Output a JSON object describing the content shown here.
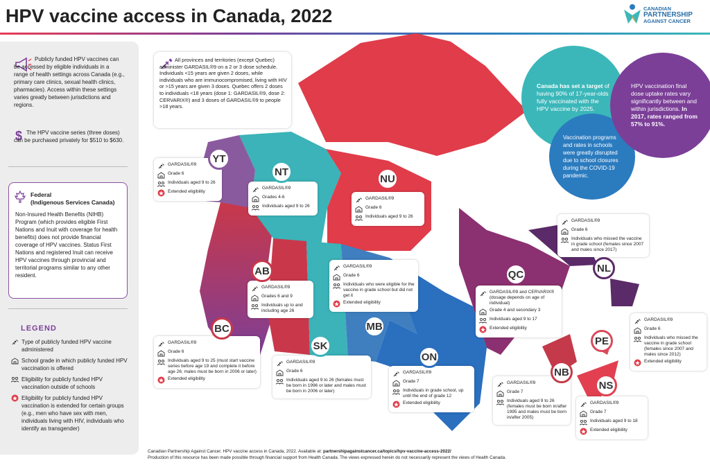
{
  "header": {
    "title": "HPV vaccine access in Canada, 2022",
    "logo": [
      "CANADIAN",
      "PARTNERSHIP",
      "AGAINST CANCER"
    ]
  },
  "sidebar": {
    "access_text": "Publicly funded HPV vaccines can be accessed by eligible individuals in a range of health settings across Canada (e.g., primary care clinics, sexual health clinics, pharmacies). Access within these settings varies greatly between jurisdictions and regions.",
    "cost_text": "The HPV vaccine series (three doses) can be purchased privately for $510 to $630.",
    "federal": {
      "title": "Federal",
      "subtitle": "(Indigenous Services Canada)",
      "body": "Non-Insured Health Benefits (NIHB) Program (which provides eligible First Nations and Inuit with coverage for health benefits) does not provide financial coverage of HPV vaccines. Status First Nations and registered Inuit can receive HPV vaccines through provincial and territorial programs similar to any other resident."
    },
    "legend": {
      "title": "LEGEND",
      "items": [
        "Type of publicly funded HPV vaccine administered",
        "School grade in which publicly funded HPV vaccination is offered",
        "Eligibility for publicly funded HPV vaccination outside of schools",
        "Eligibility for publicly funded HPV vaccination is extended for certain groups (e.g., men who have sex with men, individuals living with HIV, individuals who identify as transgender)"
      ]
    }
  },
  "note": "All provinces and territories (except Quebec) administer GARDASIL®9 on a 2 or 3 dose schedule. Individuals <15 years are given 2 doses, while individuals who are immunocompromised, living with HIV or >15 years are given 3 doses. Quebec offers 2 doses to individuals <18 years (dose 1: GARDASIL®9, dose 2: CERVARIX®) and 3 doses of GARDASIL®9 to people >18 years.",
  "callouts": [
    {
      "bold": "Canada has set a target",
      "text": "of having 90% of 17-year-olds fully vaccinated with the HPV vaccine by 2025."
    },
    {
      "text": "Vaccination programs and rates in schools were greatly disrupted due to school closures during the COVID-19 pandemic."
    },
    {
      "text": "HPV vaccination final dose uptake rates vary significantly between and within jurisdictions.",
      "bold": "In 2017, rates ranged from 57% to 91%."
    }
  ],
  "provinces": [
    {
      "code": "YT",
      "vaccine": "GARDASIL®9",
      "grade": "Grade 6",
      "eligibility": "Individuals aged 9 to 26",
      "extended": "Extended eligibility"
    },
    {
      "code": "NT",
      "vaccine": "GARDASIL®9",
      "grade": "Grades 4-6",
      "eligibility": "Individuals aged 9 to 26"
    },
    {
      "code": "NU",
      "vaccine": "GARDASIL®9",
      "grade": "Grade 6",
      "eligibility": "Individuals aged 9 to 26"
    },
    {
      "code": "AB",
      "vaccine": "GARDASIL®9",
      "grade": "Grades 6 and 9",
      "eligibility": "Individuals up to and including age 26"
    },
    {
      "code": "MB",
      "vaccine": "GARDASIL®9",
      "grade": "Grade 6",
      "eligibility": "Individuals who were eligible for the vaccine in grade school but did not get it",
      "extended": "Extended eligibility"
    },
    {
      "code": "BC",
      "vaccine": "GARDASIL®9",
      "grade": "Grade 6",
      "eligibility": "Individuals aged 9 to 25 (must start vaccine series before age 19 and complete it before age 26; males must be born in 2006 or later)",
      "extended": "Extended eligibility"
    },
    {
      "code": "SK",
      "vaccine": "GARDASIL®9",
      "grade": "Grade 6",
      "eligibility": "Individuals aged 9 to 26 (females must be born in 1996 or later and males must be born in 2006 or later)"
    },
    {
      "code": "ON",
      "vaccine": "GARDASIL®9",
      "grade": "Grade 7",
      "eligibility": "Individuals in grade school, up until the end of grade 12",
      "extended": "Extended eligibility"
    },
    {
      "code": "QC",
      "vaccine": "GARDASIL®9 and CERVARIX® (dosage depends on age of individual)",
      "grade": "Grade 4 and secondary 3",
      "eligibility": "Individuals aged 9 to 17",
      "extended": "Extended eligibility"
    },
    {
      "code": "NL",
      "vaccine": "GARDASIL®9",
      "grade": "Grade 6",
      "eligibility": "Individuals who missed the vaccine in grade school (females since 2007 and males since 2017)"
    },
    {
      "code": "NB",
      "vaccine": "GARDASIL®9",
      "grade": "Grade 7",
      "eligibility": "Individuals aged 9 to 26 (females must be born in/after 1995 and males must be born in/after 2005)"
    },
    {
      "code": "PE",
      "vaccine": "GARDASIL®9",
      "grade": "Grade 6",
      "eligibility": "Individuals who missed the vaccine in grade school (females since 2007 and males since 2012)",
      "extended": "Extended eligibility"
    },
    {
      "code": "NS",
      "vaccine": "GARDASIL®9",
      "grade": "Grade 7",
      "eligibility": "Individuals aged 9 to 18",
      "extended": "Extended eligibility"
    }
  ],
  "footer": {
    "citation": "Canadian Partnership Against Cancer. HPV vaccine access in Canada, 2022. Available at:",
    "link": "partnershipagainstcancer.ca/topics/hpv-vaccine-access-2022/",
    "funding": "Production of this resource has been made possible through financial support from Health Canada. The views expressed herein do not necessarily represent the views of Health Canada."
  }
}
